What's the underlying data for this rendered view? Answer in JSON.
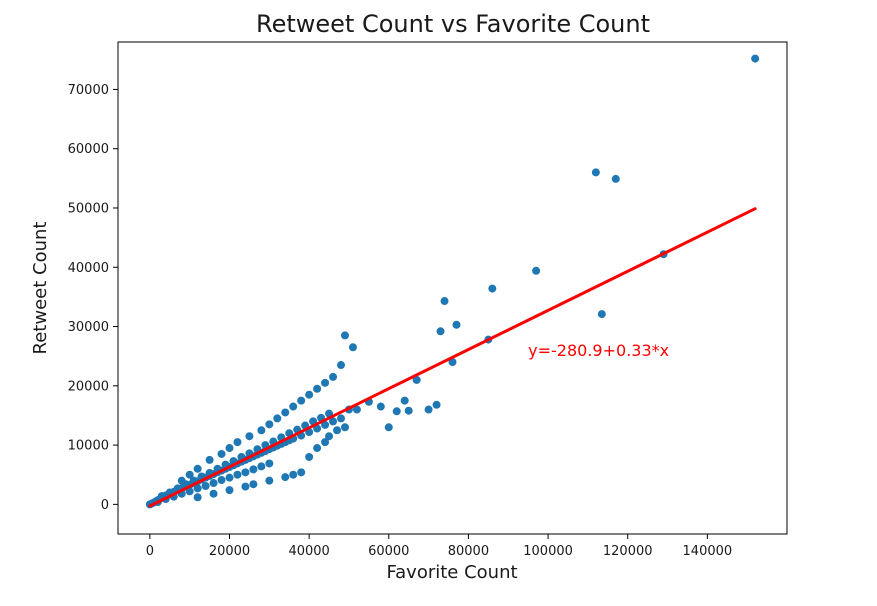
{
  "chart_data": {
    "type": "scatter",
    "title": "Retweet Count vs Favorite Count",
    "xlabel": "Favorite Count",
    "ylabel": "Retweet Count",
    "xlim": [
      -8000,
      160000
    ],
    "ylim": [
      -5000,
      78000
    ],
    "x_ticks": [
      0,
      20000,
      40000,
      60000,
      80000,
      100000,
      120000,
      140000
    ],
    "x_tick_labels": [
      "0",
      "20000",
      "40000",
      "60000",
      "80000",
      "100000",
      "120000",
      "140000"
    ],
    "y_ticks": [
      0,
      10000,
      20000,
      30000,
      40000,
      50000,
      60000,
      70000
    ],
    "y_tick_labels": [
      "0",
      "10000",
      "20000",
      "30000",
      "40000",
      "50000",
      "60000",
      "70000"
    ],
    "grid": false,
    "point_color": "#1f77b4",
    "line_color": "#ff0000",
    "series": [
      {
        "type": "scatter",
        "x": [
          0,
          500,
          1000,
          1500,
          2000,
          2500,
          3000,
          3500,
          4000,
          5000,
          6000,
          7000,
          8000,
          9000,
          10000,
          11000,
          12000,
          13000,
          14000,
          15000,
          16000,
          17000,
          18000,
          19000,
          20000,
          21000,
          22000,
          23000,
          24000,
          25000,
          26000,
          27000,
          28000,
          29000,
          30000,
          31000,
          32000,
          33000,
          34000,
          35000,
          36000,
          38000,
          40000,
          42000,
          44000,
          46000,
          48000,
          2000,
          4000,
          6000,
          8000,
          10000,
          12000,
          14000,
          16000,
          18000,
          20000,
          22000,
          24000,
          26000,
          28000,
          30000,
          3000,
          5000,
          7000,
          9000,
          11000,
          13000,
          15000,
          17000,
          19000,
          21000,
          23000,
          25000,
          27000,
          29000,
          31000,
          33000,
          35000,
          37000,
          39000,
          41000,
          43000,
          45000,
          8000,
          10000,
          12000,
          15000,
          18000,
          20000,
          22000,
          25000,
          28000,
          30000,
          32000,
          34000,
          36000,
          38000,
          40000,
          42000,
          44000,
          46000,
          48000,
          49000,
          50000,
          12000,
          16000,
          20000,
          24000,
          26000,
          30000,
          34000,
          36000,
          38000,
          40000,
          42000,
          44000,
          45000,
          47000,
          49000,
          51000,
          52000,
          55000,
          58000,
          60000,
          62000,
          64000,
          65000,
          67000,
          70000,
          72000,
          73000,
          74000,
          76000,
          77000,
          85000,
          86000,
          97000,
          112000,
          113500,
          117000,
          129000,
          152000
        ],
        "y": [
          0,
          150,
          300,
          500,
          700,
          900,
          1100,
          1300,
          1500,
          1800,
          2100,
          2400,
          2700,
          3000,
          3300,
          3600,
          3900,
          4200,
          4500,
          4800,
          5100,
          5400,
          5700,
          6000,
          6300,
          6600,
          6900,
          7200,
          7500,
          7800,
          8100,
          8400,
          8700,
          9000,
          9300,
          9600,
          9900,
          10200,
          10500,
          10800,
          11100,
          11600,
          12200,
          12800,
          13400,
          14000,
          14500,
          400,
          900,
          1300,
          1800,
          2200,
          2700,
          3100,
          3600,
          4100,
          4500,
          5000,
          5400,
          5900,
          6400,
          6900,
          1400,
          2000,
          2700,
          3400,
          4000,
          4700,
          5300,
          6000,
          6700,
          7300,
          8000,
          8600,
          9300,
          10000,
          10600,
          11300,
          12000,
          12600,
          13300,
          14000,
          14600,
          15300,
          4000,
          5000,
          6000,
          7500,
          8500,
          9500,
          10500,
          11500,
          12500,
          13500,
          14500,
          15500,
          16500,
          17500,
          18500,
          19500,
          20500,
          21500,
          23500,
          28500,
          16000,
          1200,
          1800,
          2400,
          3000,
          3400,
          4000,
          4600,
          5000,
          5400,
          8000,
          9500,
          10500,
          11500,
          12500,
          13000,
          26500,
          16000,
          17300,
          16500,
          13000,
          15700,
          17500,
          15800,
          21000,
          16000,
          16800,
          29200,
          34300,
          24000,
          30300,
          27800,
          36400,
          39400,
          56000,
          32100,
          54900,
          42200,
          75200
        ]
      },
      {
        "type": "line",
        "name": "y=-280.9+0.33*x",
        "x": [
          0,
          152000
        ],
        "y": [
          -280.9,
          49879.1
        ]
      }
    ],
    "annotations": [
      {
        "text": "y=-280.9+0.33*x",
        "x": 95000,
        "y": 25000,
        "color": "#ff0000"
      }
    ]
  }
}
